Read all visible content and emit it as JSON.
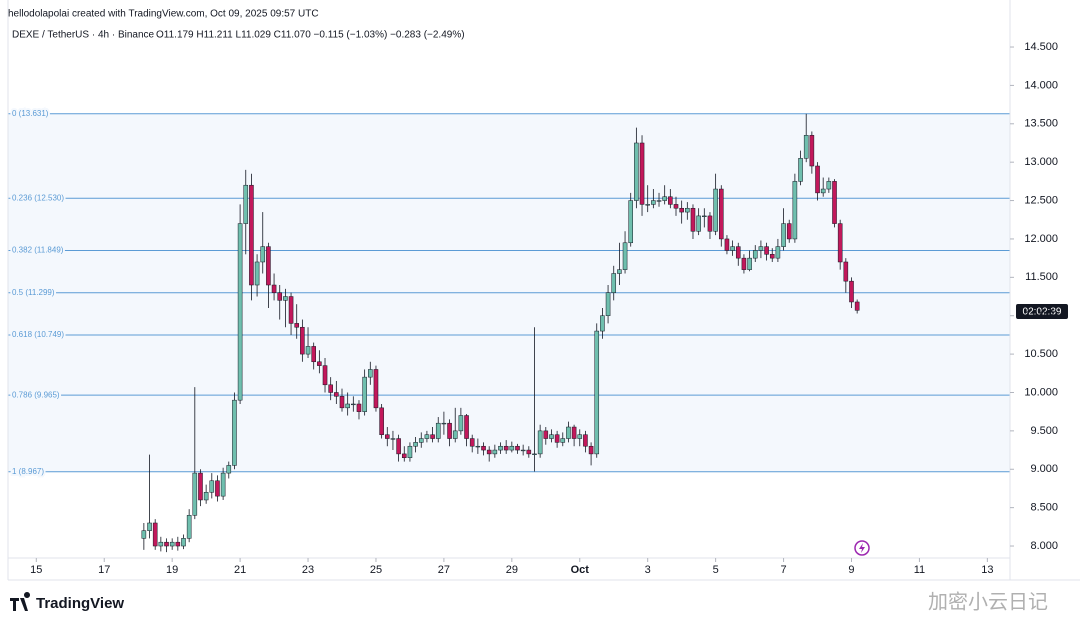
{
  "header": {
    "credit": "hellodolapolai created with TradingView.com, Oct 09, 2025 09:57 UTC",
    "watermark": "加密小云日记",
    "logo": "TradingView",
    "countdown": "02:02:39"
  },
  "chart_data": {
    "type": "candlestick",
    "title": "DEXE / TetherUS · 4h · Binance",
    "subtitle": "O11.179 H11.211 L11.029 C11.070 −0.115 (−1.03%) −0.283 (−2.49%)",
    "up_color": "#6fbfae",
    "down_color": "#c2185b",
    "fib_color": "#5b9bd5",
    "fib_fill": "#f4f8fd",
    "xlim": [
      -24,
      153
    ],
    "ylim": [
      7.844,
      14.852
    ],
    "xticks": [
      {
        "value": -19,
        "label": "15"
      },
      {
        "value": -7,
        "label": "17"
      },
      {
        "value": 5,
        "label": "19"
      },
      {
        "value": 17,
        "label": "21"
      },
      {
        "value": 29,
        "label": "23"
      },
      {
        "value": 41,
        "label": "25"
      },
      {
        "value": 53,
        "label": "27"
      },
      {
        "value": 65,
        "label": "29"
      },
      {
        "value": 77,
        "label": "Oct"
      },
      {
        "value": 89,
        "label": "3"
      },
      {
        "value": 101,
        "label": "5"
      },
      {
        "value": 113,
        "label": "7"
      },
      {
        "value": 125,
        "label": "9"
      },
      {
        "value": 137,
        "label": "11"
      },
      {
        "value": 149,
        "label": "13"
      }
    ],
    "yticks": [
      {
        "value": 8,
        "label": "8.000"
      },
      {
        "value": 8.5,
        "label": "8.500"
      },
      {
        "value": 9,
        "label": "9.000"
      },
      {
        "value": 9.5,
        "label": "9.500"
      },
      {
        "value": 10,
        "label": "10.000"
      },
      {
        "value": 10.5,
        "label": "10.500"
      },
      {
        "value": 11,
        "label": "11.000"
      },
      {
        "value": 11.5,
        "label": "11.500"
      },
      {
        "value": 12,
        "label": "12.000"
      },
      {
        "value": 12.5,
        "label": "12.500"
      },
      {
        "value": 13,
        "label": "13.000"
      },
      {
        "value": 13.5,
        "label": "13.500"
      },
      {
        "value": 14,
        "label": "14.000"
      },
      {
        "value": 14.5,
        "label": "14.500"
      }
    ],
    "fib_levels": [
      {
        "label": "0 (13.631)",
        "value": 13.631
      },
      {
        "label": "0.236 (12.530)",
        "value": 12.53
      },
      {
        "label": "0.382 (11.849)",
        "value": 11.849
      },
      {
        "label": "0.5 (11.299)",
        "value": 11.299
      },
      {
        "label": "0.618 (10.749)",
        "value": 10.749
      },
      {
        "label": "0.786 (9.965)",
        "value": 9.965
      },
      {
        "label": "1 (8.967)",
        "value": 8.967
      }
    ],
    "candles": [
      [
        8.1,
        8.3,
        7.95,
        8.2
      ],
      [
        8.2,
        9.19,
        8.1,
        8.3
      ],
      [
        8.3,
        8.35,
        7.95,
        8.0
      ],
      [
        8.0,
        8.12,
        7.93,
        8.05
      ],
      [
        8.05,
        8.1,
        7.92,
        8.0
      ],
      [
        8.0,
        8.1,
        7.95,
        8.05
      ],
      [
        8.05,
        8.12,
        7.94,
        8.0
      ],
      [
        8.0,
        8.15,
        7.96,
        8.1
      ],
      [
        8.1,
        8.48,
        8.05,
        8.4
      ],
      [
        8.4,
        10.07,
        8.35,
        8.95
      ],
      [
        8.95,
        9.0,
        8.52,
        8.6
      ],
      [
        8.6,
        8.8,
        8.55,
        8.7
      ],
      [
        8.7,
        8.95,
        8.62,
        8.85
      ],
      [
        8.85,
        8.92,
        8.58,
        8.65
      ],
      [
        8.65,
        9.02,
        8.6,
        8.95
      ],
      [
        8.95,
        9.1,
        8.88,
        9.05
      ],
      [
        9.05,
        10.0,
        9.0,
        9.9
      ],
      [
        9.9,
        12.45,
        9.85,
        12.2
      ],
      [
        12.2,
        12.9,
        11.8,
        12.7
      ],
      [
        12.7,
        12.85,
        11.2,
        11.4
      ],
      [
        11.4,
        11.8,
        11.25,
        11.7
      ],
      [
        11.7,
        12.35,
        11.55,
        11.9
      ],
      [
        11.9,
        11.95,
        11.1,
        11.4
      ],
      [
        11.4,
        11.55,
        11.2,
        11.3
      ],
      [
        11.3,
        11.4,
        10.95,
        11.2
      ],
      [
        11.2,
        11.35,
        10.85,
        11.25
      ],
      [
        11.25,
        11.3,
        10.75,
        10.9
      ],
      [
        10.9,
        11.15,
        10.7,
        10.85
      ],
      [
        10.85,
        10.95,
        10.4,
        10.5
      ],
      [
        10.5,
        10.85,
        10.45,
        10.6
      ],
      [
        10.6,
        10.65,
        10.3,
        10.4
      ],
      [
        10.4,
        10.55,
        10.25,
        10.35
      ],
      [
        10.35,
        10.45,
        10.0,
        10.1
      ],
      [
        10.1,
        10.2,
        9.9,
        10.0
      ],
      [
        10.0,
        10.15,
        9.85,
        9.95
      ],
      [
        9.95,
        10.05,
        9.75,
        9.8
      ],
      [
        9.8,
        10.0,
        9.7,
        9.85
      ],
      [
        9.85,
        9.95,
        9.75,
        9.85
      ],
      [
        9.85,
        9.9,
        9.65,
        9.75
      ],
      [
        9.75,
        10.3,
        9.7,
        10.2
      ],
      [
        10.2,
        10.4,
        10.1,
        10.3
      ],
      [
        10.3,
        10.35,
        9.75,
        9.8
      ],
      [
        9.8,
        9.85,
        9.4,
        9.45
      ],
      [
        9.45,
        9.55,
        9.3,
        9.4
      ],
      [
        9.4,
        9.5,
        9.25,
        9.4
      ],
      [
        9.4,
        9.45,
        9.1,
        9.2
      ],
      [
        9.2,
        9.3,
        9.1,
        9.15
      ],
      [
        9.15,
        9.35,
        9.1,
        9.3
      ],
      [
        9.3,
        9.42,
        9.22,
        9.35
      ],
      [
        9.35,
        9.48,
        9.28,
        9.4
      ],
      [
        9.4,
        9.5,
        9.35,
        9.45
      ],
      [
        9.45,
        9.55,
        9.35,
        9.4
      ],
      [
        9.4,
        9.68,
        9.35,
        9.6
      ],
      [
        9.6,
        9.75,
        9.45,
        9.6
      ],
      [
        9.6,
        9.65,
        9.3,
        9.4
      ],
      [
        9.4,
        9.8,
        9.35,
        9.5
      ],
      [
        9.5,
        9.8,
        9.45,
        9.7
      ],
      [
        9.7,
        9.72,
        9.3,
        9.4
      ],
      [
        9.4,
        9.45,
        9.22,
        9.3
      ],
      [
        9.3,
        9.4,
        9.2,
        9.3
      ],
      [
        9.3,
        9.35,
        9.18,
        9.25
      ],
      [
        9.25,
        9.3,
        9.1,
        9.2
      ],
      [
        9.2,
        9.32,
        9.15,
        9.25
      ],
      [
        9.25,
        9.35,
        9.2,
        9.3
      ],
      [
        9.3,
        9.38,
        9.2,
        9.25
      ],
      [
        9.25,
        9.36,
        9.22,
        9.3
      ],
      [
        9.3,
        9.33,
        9.2,
        9.25
      ],
      [
        9.25,
        9.32,
        9.18,
        9.25
      ],
      [
        9.25,
        9.3,
        9.15,
        9.2
      ],
      [
        9.2,
        10.85,
        8.97,
        9.2
      ],
      [
        9.2,
        9.58,
        9.15,
        9.5
      ],
      [
        9.5,
        9.55,
        9.32,
        9.4
      ],
      [
        9.4,
        9.52,
        9.35,
        9.45
      ],
      [
        9.45,
        9.5,
        9.28,
        9.35
      ],
      [
        9.35,
        9.48,
        9.3,
        9.4
      ],
      [
        9.4,
        9.62,
        9.35,
        9.55
      ],
      [
        9.55,
        9.58,
        9.3,
        9.4
      ],
      [
        9.4,
        9.52,
        9.3,
        9.45
      ],
      [
        9.45,
        9.5,
        9.22,
        9.3
      ],
      [
        9.3,
        9.35,
        9.05,
        9.2
      ],
      [
        9.2,
        10.9,
        9.15,
        10.8
      ],
      [
        10.8,
        11.1,
        10.7,
        11.0
      ],
      [
        11.0,
        11.4,
        10.9,
        11.3
      ],
      [
        11.3,
        11.65,
        11.2,
        11.55
      ],
      [
        11.55,
        11.95,
        11.4,
        11.6
      ],
      [
        11.6,
        12.1,
        11.55,
        11.95
      ],
      [
        11.95,
        12.6,
        11.9,
        12.5
      ],
      [
        12.5,
        13.45,
        12.4,
        13.25
      ],
      [
        13.25,
        13.35,
        12.3,
        12.45
      ],
      [
        12.45,
        12.7,
        12.35,
        12.45
      ],
      [
        12.45,
        12.65,
        12.4,
        12.5
      ],
      [
        12.5,
        12.6,
        12.42,
        12.5
      ],
      [
        12.5,
        12.7,
        12.45,
        12.55
      ],
      [
        12.55,
        12.65,
        12.4,
        12.45
      ],
      [
        12.45,
        12.55,
        12.3,
        12.4
      ],
      [
        12.4,
        12.5,
        12.2,
        12.35
      ],
      [
        12.35,
        12.48,
        12.25,
        12.4
      ],
      [
        12.4,
        12.45,
        12.0,
        12.1
      ],
      [
        12.1,
        12.4,
        12.05,
        12.3
      ],
      [
        12.3,
        12.4,
        12.15,
        12.3
      ],
      [
        12.3,
        12.35,
        12.0,
        12.1
      ],
      [
        12.1,
        12.85,
        12.05,
        12.65
      ],
      [
        12.65,
        12.7,
        11.9,
        12.0
      ],
      [
        12.0,
        12.05,
        11.8,
        11.85
      ],
      [
        11.85,
        11.98,
        11.78,
        11.9
      ],
      [
        11.9,
        11.95,
        11.65,
        11.75
      ],
      [
        11.75,
        11.8,
        11.55,
        11.6
      ],
      [
        11.6,
        11.85,
        11.58,
        11.75
      ],
      [
        11.75,
        11.92,
        11.7,
        11.85
      ],
      [
        11.85,
        11.98,
        11.75,
        11.9
      ],
      [
        11.9,
        11.95,
        11.72,
        11.8
      ],
      [
        11.8,
        11.88,
        11.7,
        11.75
      ],
      [
        11.75,
        12.0,
        11.7,
        11.9
      ],
      [
        11.9,
        12.4,
        11.85,
        12.2
      ],
      [
        12.2,
        12.25,
        11.95,
        12.0
      ],
      [
        12.0,
        12.85,
        11.95,
        12.75
      ],
      [
        12.75,
        13.15,
        12.7,
        13.05
      ],
      [
        13.05,
        13.63,
        13.0,
        13.35
      ],
      [
        13.35,
        13.4,
        12.85,
        12.95
      ],
      [
        12.95,
        13.0,
        12.5,
        12.6
      ],
      [
        12.6,
        12.8,
        12.55,
        12.65
      ],
      [
        12.65,
        12.8,
        12.6,
        12.75
      ],
      [
        12.75,
        12.78,
        12.15,
        12.2
      ],
      [
        12.2,
        12.25,
        11.6,
        11.7
      ],
      [
        11.7,
        11.75,
        11.3,
        11.45
      ],
      [
        11.45,
        11.5,
        11.1,
        11.179
      ],
      [
        11.179,
        11.211,
        11.029,
        11.07
      ]
    ]
  }
}
